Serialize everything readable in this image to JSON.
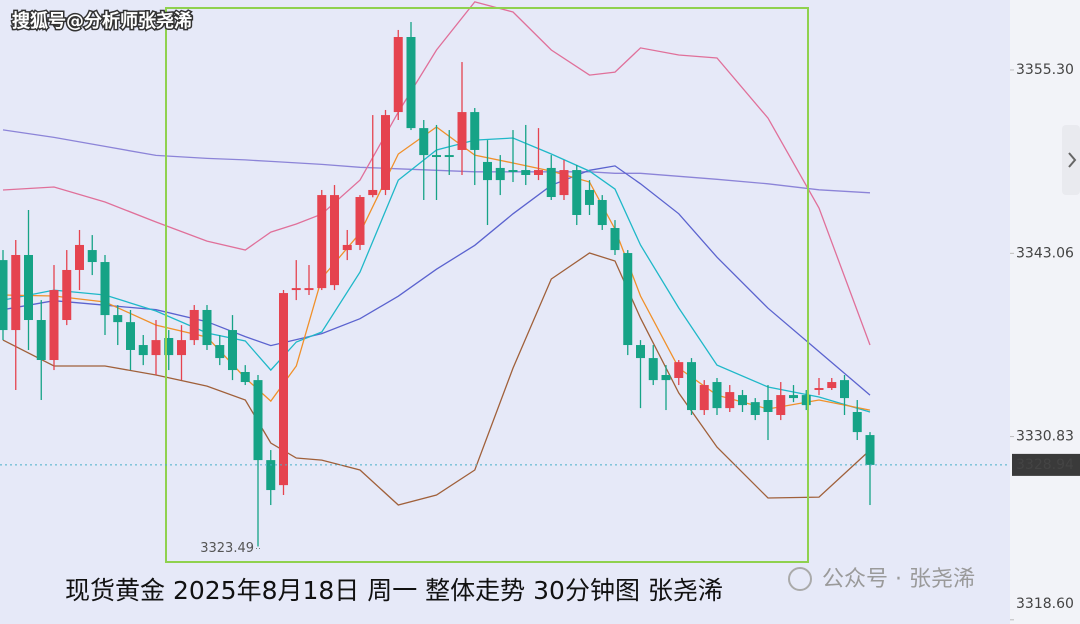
{
  "chart_data": {
    "type": "candlestick",
    "watermark": "搜狐号@分析师张尧浠",
    "title": "现货黄金 2025年8月18日 周一 整体走势 30分钟图 张尧浠",
    "source": "公众号 · 张尧浠",
    "up_color": "#e5434f",
    "down_color": "#16a386",
    "ylim": [
      3318.32,
      3359.97
    ],
    "yticks": [
      {
        "value": 3355.3,
        "label": "3355.30"
      },
      3343.06,
      3330.83,
      {
        "value": 3318.6,
        "label": "3318.60"
      }
    ],
    "open": [
      3342.61,
      3337.94,
      3342.95,
      3338.61,
      3335.94,
      3338.61,
      3341.95,
      3343.28,
      3342.48,
      3338.94,
      3338.47,
      3336.94,
      3336.27,
      3337.41,
      3336.27,
      3337.27,
      3339.28,
      3336.94,
      3337.94,
      3335.14,
      3334.6,
      3329.26,
      3327.59,
      3340.61,
      3340.61,
      3340.74,
      3340.94,
      3343.28,
      3343.62,
      3346.95,
      3347.29,
      3352.49,
      3357.5,
      3351.42,
      3349.62,
      3349.62,
      3349.96,
      3352.49,
      3349.16,
      3348.76,
      3348.62,
      3348.62,
      3348.29,
      3348.76,
      3346.95,
      3348.62,
      3347.29,
      3346.62,
      3344.75,
      3343.08,
      3336.94,
      3336.07,
      3334.94,
      3334.74,
      3335.8,
      3332.6,
      3334.47,
      3332.73,
      3333.6,
      3333.13,
      3333.27,
      3332.27,
      3333.6,
      3333.6,
      3333.94,
      3334.07,
      3334.6,
      3332.47,
      3330.93
    ],
    "high": [
      3343.28,
      3343.95,
      3345.95,
      3339.94,
      3342.28,
      3343.28,
      3344.62,
      3344.28,
      3342.95,
      3339.61,
      3339.28,
      3337.61,
      3338.61,
      3337.94,
      3338.27,
      3339.61,
      3339.61,
      3337.61,
      3338.94,
      3335.6,
      3334.94,
      3329.93,
      3340.61,
      3342.61,
      3342.28,
      3347.29,
      3347.62,
      3344.62,
      3346.95,
      3352.29,
      3352.63,
      3357.97,
      3358.5,
      3351.96,
      3351.63,
      3351.29,
      3355.83,
      3352.76,
      3350.62,
      3349.62,
      3351.29,
      3351.63,
      3351.42,
      3349.62,
      3349.29,
      3348.96,
      3347.95,
      3346.95,
      3345.28,
      3343.28,
      3337.27,
      3336.94,
      3335.6,
      3335.94,
      3336.07,
      3334.6,
      3334.74,
      3334.27,
      3333.94,
      3333.4,
      3334.27,
      3334.47,
      3334.27,
      3333.94,
      3334.74,
      3334.74,
      3334.94,
      3333.27,
      3331.13
    ],
    "low": [
      3337.27,
      3333.94,
      3336.61,
      3333.27,
      3335.27,
      3338.27,
      3340.61,
      3341.61,
      3337.61,
      3336.94,
      3335.27,
      3335.6,
      3334.94,
      3335.27,
      3334.6,
      3336.94,
      3336.61,
      3335.6,
      3334.6,
      3334.27,
      3323.49,
      3326.26,
      3326.93,
      3339.94,
      3340.28,
      3340.61,
      3340.61,
      3342.61,
      3343.28,
      3346.8,
      3346.95,
      3351.96,
      3351.29,
      3346.62,
      3346.62,
      3348.29,
      3348.29,
      3347.62,
      3344.95,
      3346.95,
      3347.82,
      3347.62,
      3347.95,
      3346.62,
      3346.62,
      3344.95,
      3345.62,
      3344.62,
      3342.95,
      3336.27,
      3332.73,
      3334.27,
      3332.6,
      3334.27,
      3332.27,
      3332.27,
      3332.27,
      3332.47,
      3332.47,
      3331.93,
      3330.6,
      3331.93,
      3333.13,
      3332.6,
      3333.6,
      3333.94,
      3332.27,
      3330.6,
      3326.26
    ],
    "close": [
      3337.94,
      3342.95,
      3338.61,
      3335.94,
      3340.61,
      3341.95,
      3343.62,
      3342.48,
      3338.94,
      3338.47,
      3336.61,
      3336.27,
      3337.27,
      3336.27,
      3337.27,
      3339.28,
      3336.94,
      3336.07,
      3335.27,
      3334.47,
      3329.26,
      3327.26,
      3340.41,
      3340.74,
      3340.74,
      3346.95,
      3346.95,
      3343.62,
      3346.82,
      3347.29,
      3352.29,
      3357.5,
      3351.42,
      3349.62,
      3349.49,
      3349.49,
      3352.49,
      3349.96,
      3347.95,
      3347.95,
      3348.49,
      3348.29,
      3348.62,
      3346.82,
      3348.62,
      3345.62,
      3346.29,
      3344.95,
      3343.28,
      3336.94,
      3336.07,
      3334.6,
      3334.6,
      3335.8,
      3332.6,
      3334.27,
      3332.73,
      3333.8,
      3332.93,
      3332.27,
      3332.47,
      3333.6,
      3333.4,
      3332.93,
      3334.07,
      3334.47,
      3333.4,
      3331.13,
      3328.94
    ],
    "line_x": [
      0,
      4,
      8,
      12,
      16,
      19,
      21,
      23,
      25,
      28,
      31,
      34,
      37,
      40,
      43,
      46,
      48,
      50,
      53,
      56,
      60,
      64,
      68
    ],
    "lines": [
      {
        "color": "#8c84d8",
        "values": [
          3351.3,
          3350.8,
          3350.2,
          3349.6,
          3349.4,
          3349.3,
          3349.2,
          3349.1,
          3349.0,
          3348.8,
          3348.7,
          3348.6,
          3348.5,
          3348.5,
          3348.5,
          3348.5,
          3348.4,
          3348.4,
          3348.2,
          3348.0,
          3347.7,
          3347.3,
          3347.1
        ]
      },
      {
        "color": "#5b63cf",
        "values": [
          3339.3,
          3339.9,
          3339.6,
          3339.3,
          3338.5,
          3337.5,
          3336.9,
          3337.3,
          3337.7,
          3338.7,
          3340.2,
          3342.0,
          3343.6,
          3345.7,
          3347.6,
          3348.6,
          3348.9,
          3347.7,
          3345.7,
          3342.8,
          3339.4,
          3336.5,
          3333.6
        ]
      },
      {
        "color": "#e0709a",
        "values": [
          3347.29,
          3347.49,
          3346.49,
          3345.15,
          3343.88,
          3343.28,
          3344.48,
          3345.02,
          3345.68,
          3347.95,
          3352.49,
          3356.63,
          3359.84,
          3359.17,
          3356.63,
          3354.96,
          3355.16,
          3356.77,
          3356.3,
          3356.1,
          3352.09,
          3346.09,
          3336.94
        ]
      },
      {
        "color": "#a0603a",
        "values": [
          3337.27,
          3335.54,
          3335.54,
          3334.94,
          3334.2,
          3333.27,
          3330.4,
          3329.4,
          3329.26,
          3328.6,
          3326.26,
          3326.93,
          3328.6,
          3335.4,
          3341.35,
          3343.08,
          3342.55,
          3338.74,
          3333.74,
          3330.13,
          3326.73,
          3326.79,
          3329.93
        ]
      },
      {
        "color": "#1fb8c8",
        "values": [
          3339.94,
          3340.61,
          3340.28,
          3339.21,
          3337.74,
          3337.21,
          3335.27,
          3337.14,
          3337.81,
          3341.81,
          3347.95,
          3349.96,
          3350.62,
          3350.76,
          3349.69,
          3348.55,
          3347.35,
          3343.62,
          3339.41,
          3335.6,
          3334.14,
          3333.47,
          3332.47
        ]
      },
      {
        "color": "#f0902a",
        "values": [
          3340.28,
          3340.21,
          3339.81,
          3338.27,
          3337.47,
          3334.74,
          3333.2,
          3335.54,
          3341.41,
          3344.42,
          3349.69,
          3351.49,
          3349.62,
          3349.09,
          3348.55,
          3347.82,
          3344.68,
          3340.21,
          3335.4,
          3333.6,
          3332.67,
          3333.27,
          3332.6
        ]
      }
    ]
  }
}
